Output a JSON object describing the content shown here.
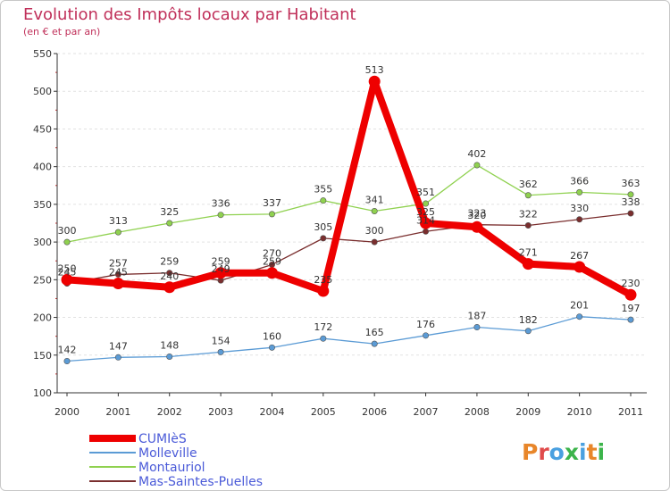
{
  "chart_data": {
    "type": "line",
    "title": "Evolution des Impôts locaux par Habitant",
    "subtitle": "(en € et par an)",
    "xlabel": "",
    "ylabel": "",
    "categories": [
      "2000",
      "2001",
      "2002",
      "2003",
      "2004",
      "2005",
      "2006",
      "2007",
      "2008",
      "2009",
      "2010",
      "2011"
    ],
    "ylim": [
      100,
      550
    ],
    "yticks": [
      100,
      150,
      200,
      250,
      300,
      350,
      400,
      450,
      500,
      550
    ],
    "series": [
      {
        "name": "CUMIèS",
        "color": "#ee0000",
        "values": [
          250,
          245,
          240,
          259,
          259,
          235,
          513,
          325,
          320,
          271,
          267,
          230
        ]
      },
      {
        "name": "Molleville",
        "color": "#5b9bd5",
        "values": [
          142,
          147,
          148,
          154,
          160,
          172,
          165,
          176,
          187,
          182,
          201,
          197
        ]
      },
      {
        "name": "Montauriol",
        "color": "#8fd14f",
        "values": [
          300,
          313,
          325,
          336,
          337,
          355,
          341,
          351,
          402,
          362,
          366,
          363
        ]
      },
      {
        "name": "Mas-Saintes-Puelles",
        "color": "#7a2e2e",
        "values": [
          245,
          257,
          259,
          249,
          270,
          305,
          300,
          314,
          323,
          322,
          330,
          338
        ]
      }
    ],
    "legend_position": "bottom-left"
  },
  "logo_text": "Proxiti"
}
